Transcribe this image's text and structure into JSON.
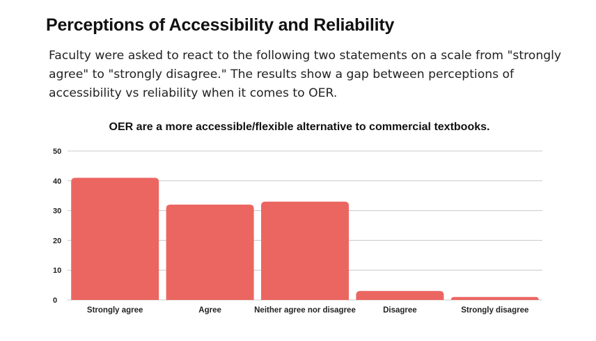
{
  "header": {
    "title": "Perceptions of Accessibility and Reliability",
    "subtitle": "Faculty were asked to react to the following two statements on a scale from \"strongly agree\" to \"strongly disagree.\" The results show a gap between perceptions of accessibility vs reliability when it comes to OER."
  },
  "chart_data": {
    "type": "bar",
    "title": "OER are a more accessible/flexible alternative to commercial textbooks.",
    "categories": [
      "Strongly agree",
      "Agree",
      "Neither agree nor disagree",
      "Disagree",
      "Strongly disagree"
    ],
    "values": [
      41,
      32,
      33,
      3,
      1
    ],
    "xlabel": "",
    "ylabel": "",
    "ylim": [
      0,
      50
    ],
    "yticks": [
      0,
      10,
      20,
      30,
      40,
      50
    ],
    "grid": true,
    "legend": "none",
    "colors": {
      "bar": "#ec6661",
      "grid": "#c8c8c8"
    }
  }
}
